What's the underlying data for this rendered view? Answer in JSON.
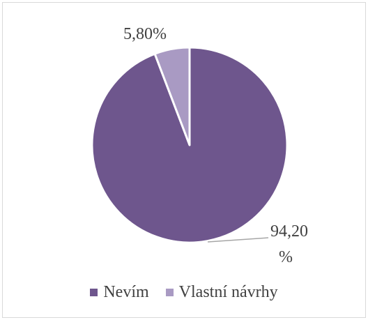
{
  "chart_data": {
    "type": "pie",
    "title": "",
    "slices": [
      {
        "name": "Nevím",
        "value": 94.2,
        "label": "94,20\n%",
        "color": "#6e568d"
      },
      {
        "name": "Vlastní návrhy",
        "value": 5.8,
        "label": "5,80%",
        "color": "#a99ac3"
      }
    ],
    "legend_position": "bottom"
  },
  "legend": {
    "items": [
      {
        "label": "Nevím",
        "color": "#6e568d"
      },
      {
        "label": "Vlastní návrhy",
        "color": "#a99ac3"
      }
    ]
  }
}
